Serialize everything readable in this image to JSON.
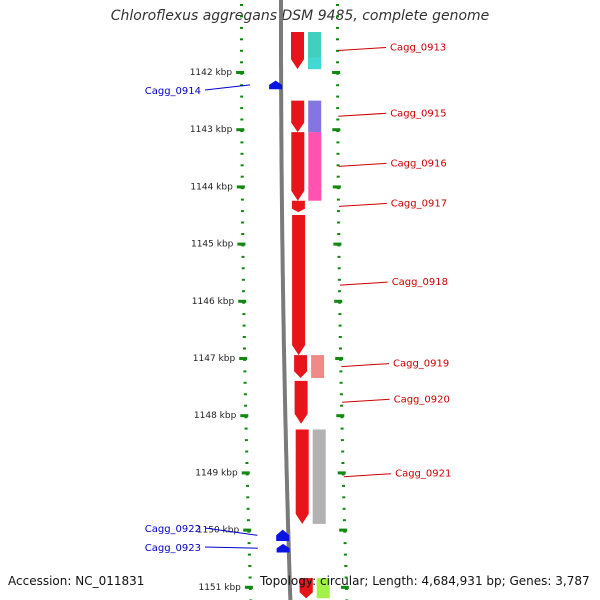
{
  "header": {
    "title": "Chloroflexus aggregans DSM 9485, complete genome"
  },
  "footer": {
    "accession": "Accession: NC_011831",
    "summary": "Topology: circular; Length: 4,684,931 bp; Genes: 3,787"
  },
  "colors": {
    "forward_gene": "#e8141b",
    "reverse_gene": "#0a14e0",
    "label_forward": "#cc0000",
    "label_reverse": "#0000cc",
    "ticks": "#118811",
    "backbone": "#7a7a7a",
    "cog_cyan": "#2fd4cf",
    "cog_purple": "#7766dd",
    "cog_pink": "#ff3fa8",
    "cog_salmon": "#f07c7c",
    "cog_gray": "#aaaaaa",
    "cog_orange": "#ff9a20",
    "cog_green": "#99ee33"
  },
  "chart_data": {
    "type": "genome_map",
    "title": "Chloroflexus aggregans DSM 9485, complete genome",
    "unit": "kbp",
    "visible_range_kbp": [
      1141.3,
      1151.2
    ],
    "ticks_kbp": [
      1142,
      1143,
      1144,
      1145,
      1146,
      1147,
      1148,
      1149,
      1150,
      1151
    ],
    "tick_labels": [
      "1142 kbp",
      "1143 kbp",
      "1144 kbp",
      "1145 kbp",
      "1146 kbp",
      "1147 kbp",
      "1148 kbp",
      "1149 kbp",
      "1150 kbp",
      "1151 kbp"
    ],
    "genes": [
      {
        "id": "top-a",
        "label": "",
        "strand": "+",
        "start_kbp": 1141.3,
        "end_kbp": 1141.75,
        "cog": "cog_orange"
      },
      {
        "id": "top-b",
        "label": "",
        "strand": "+",
        "start_kbp": 1150.85,
        "end_kbp": 1151.2,
        "cog": "cog_green"
      },
      {
        "id": "Cagg_0913",
        "label": "Cagg_0913",
        "strand": "+",
        "start_kbp": 1141.3,
        "end_kbp": 1141.95,
        "cog": "cog_cyan"
      },
      {
        "id": "Cagg_0914",
        "label": "Cagg_0914",
        "strand": "-",
        "start_kbp": 1142.15,
        "end_kbp": 1142.3,
        "cog": ""
      },
      {
        "id": "Cagg_0915",
        "label": "Cagg_0915",
        "strand": "+",
        "start_kbp": 1142.5,
        "end_kbp": 1143.05,
        "cog": "cog_purple"
      },
      {
        "id": "Cagg_0916",
        "label": "Cagg_0916",
        "strand": "+",
        "start_kbp": 1143.05,
        "end_kbp": 1144.25,
        "cog": "cog_pink"
      },
      {
        "id": "Cagg_0917",
        "label": "Cagg_0917",
        "strand": "+",
        "start_kbp": 1144.25,
        "end_kbp": 1144.45,
        "cog": ""
      },
      {
        "id": "Cagg_0918",
        "label": "Cagg_0918",
        "strand": "+",
        "start_kbp": 1144.5,
        "end_kbp": 1146.95,
        "cog": ""
      },
      {
        "id": "Cagg_0919",
        "label": "Cagg_0919",
        "strand": "+",
        "start_kbp": 1146.95,
        "end_kbp": 1147.35,
        "cog": "cog_salmon"
      },
      {
        "id": "Cagg_0920",
        "label": "Cagg_0920",
        "strand": "+",
        "start_kbp": 1147.4,
        "end_kbp": 1148.15,
        "cog": ""
      },
      {
        "id": "Cagg_0921",
        "label": "Cagg_0921",
        "strand": "+",
        "start_kbp": 1148.25,
        "end_kbp": 1149.9,
        "cog": "cog_gray"
      },
      {
        "id": "Cagg_0922",
        "label": "Cagg_0922",
        "strand": "-",
        "start_kbp": 1150.0,
        "end_kbp": 1150.2,
        "cog": ""
      },
      {
        "id": "Cagg_0923",
        "label": "Cagg_0923",
        "strand": "-",
        "start_kbp": 1150.25,
        "end_kbp": 1150.4,
        "cog": ""
      },
      {
        "id": "tail-red",
        "label": "",
        "strand": "+",
        "start_kbp": 1150.85,
        "end_kbp": 1151.2,
        "cog": ""
      }
    ]
  }
}
